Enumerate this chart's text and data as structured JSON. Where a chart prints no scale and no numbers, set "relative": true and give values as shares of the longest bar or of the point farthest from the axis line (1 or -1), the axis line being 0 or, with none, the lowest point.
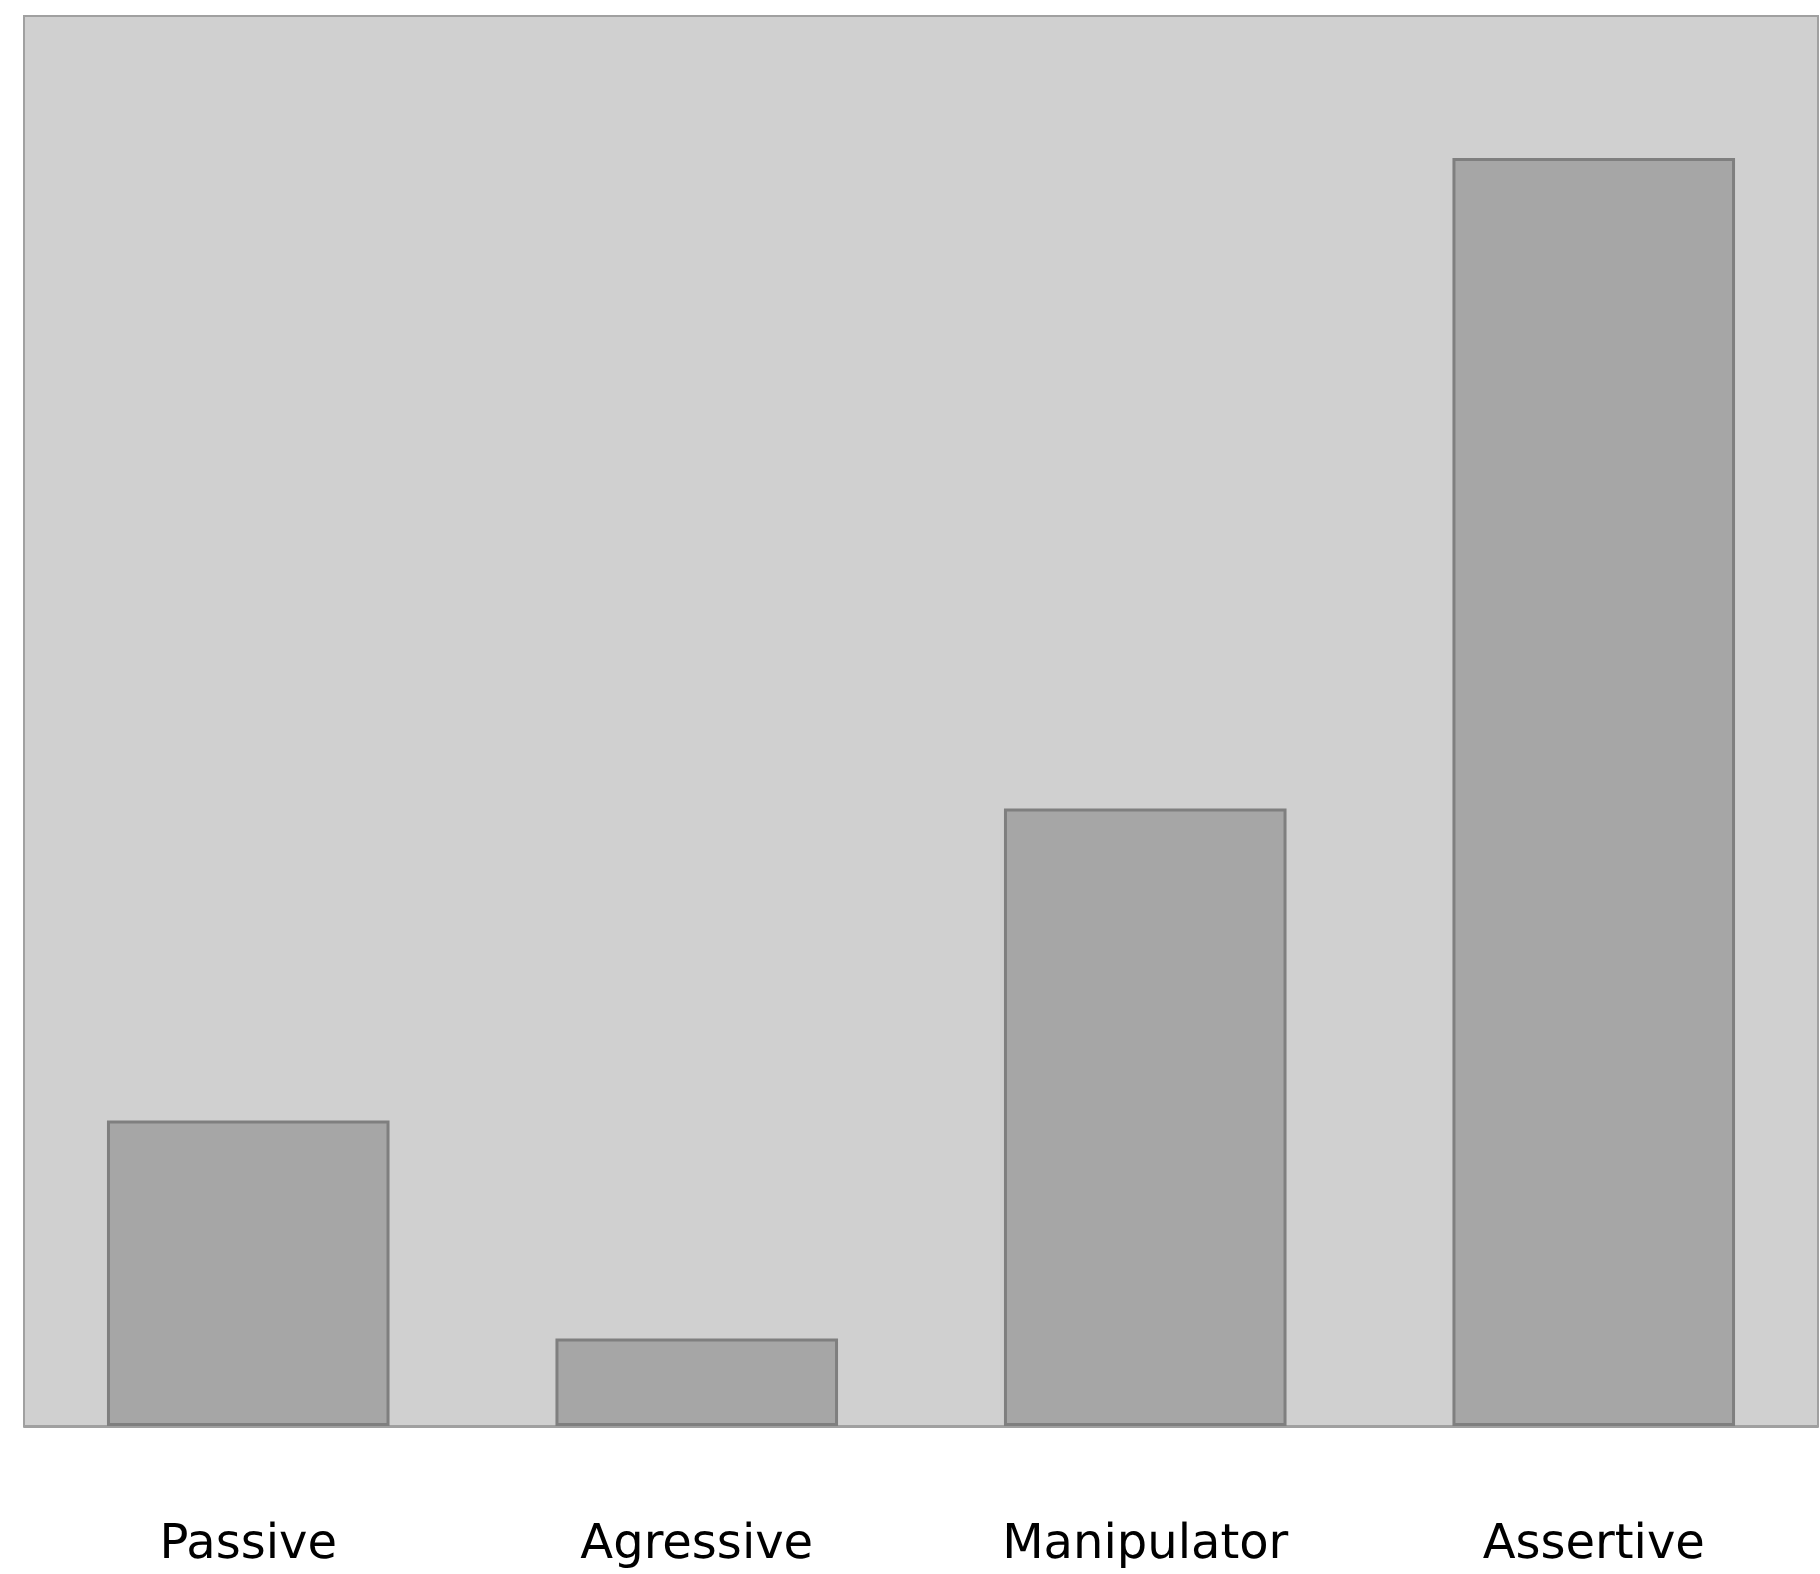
{
  "chart_data": {
    "type": "bar",
    "relative": true,
    "categories": [
      "Passive",
      "Agressive",
      "Manipulator",
      "Assertive"
    ],
    "values": [
      0.241,
      0.069,
      0.487,
      1
    ],
    "color": "#a6a6a6",
    "grid": false
  }
}
